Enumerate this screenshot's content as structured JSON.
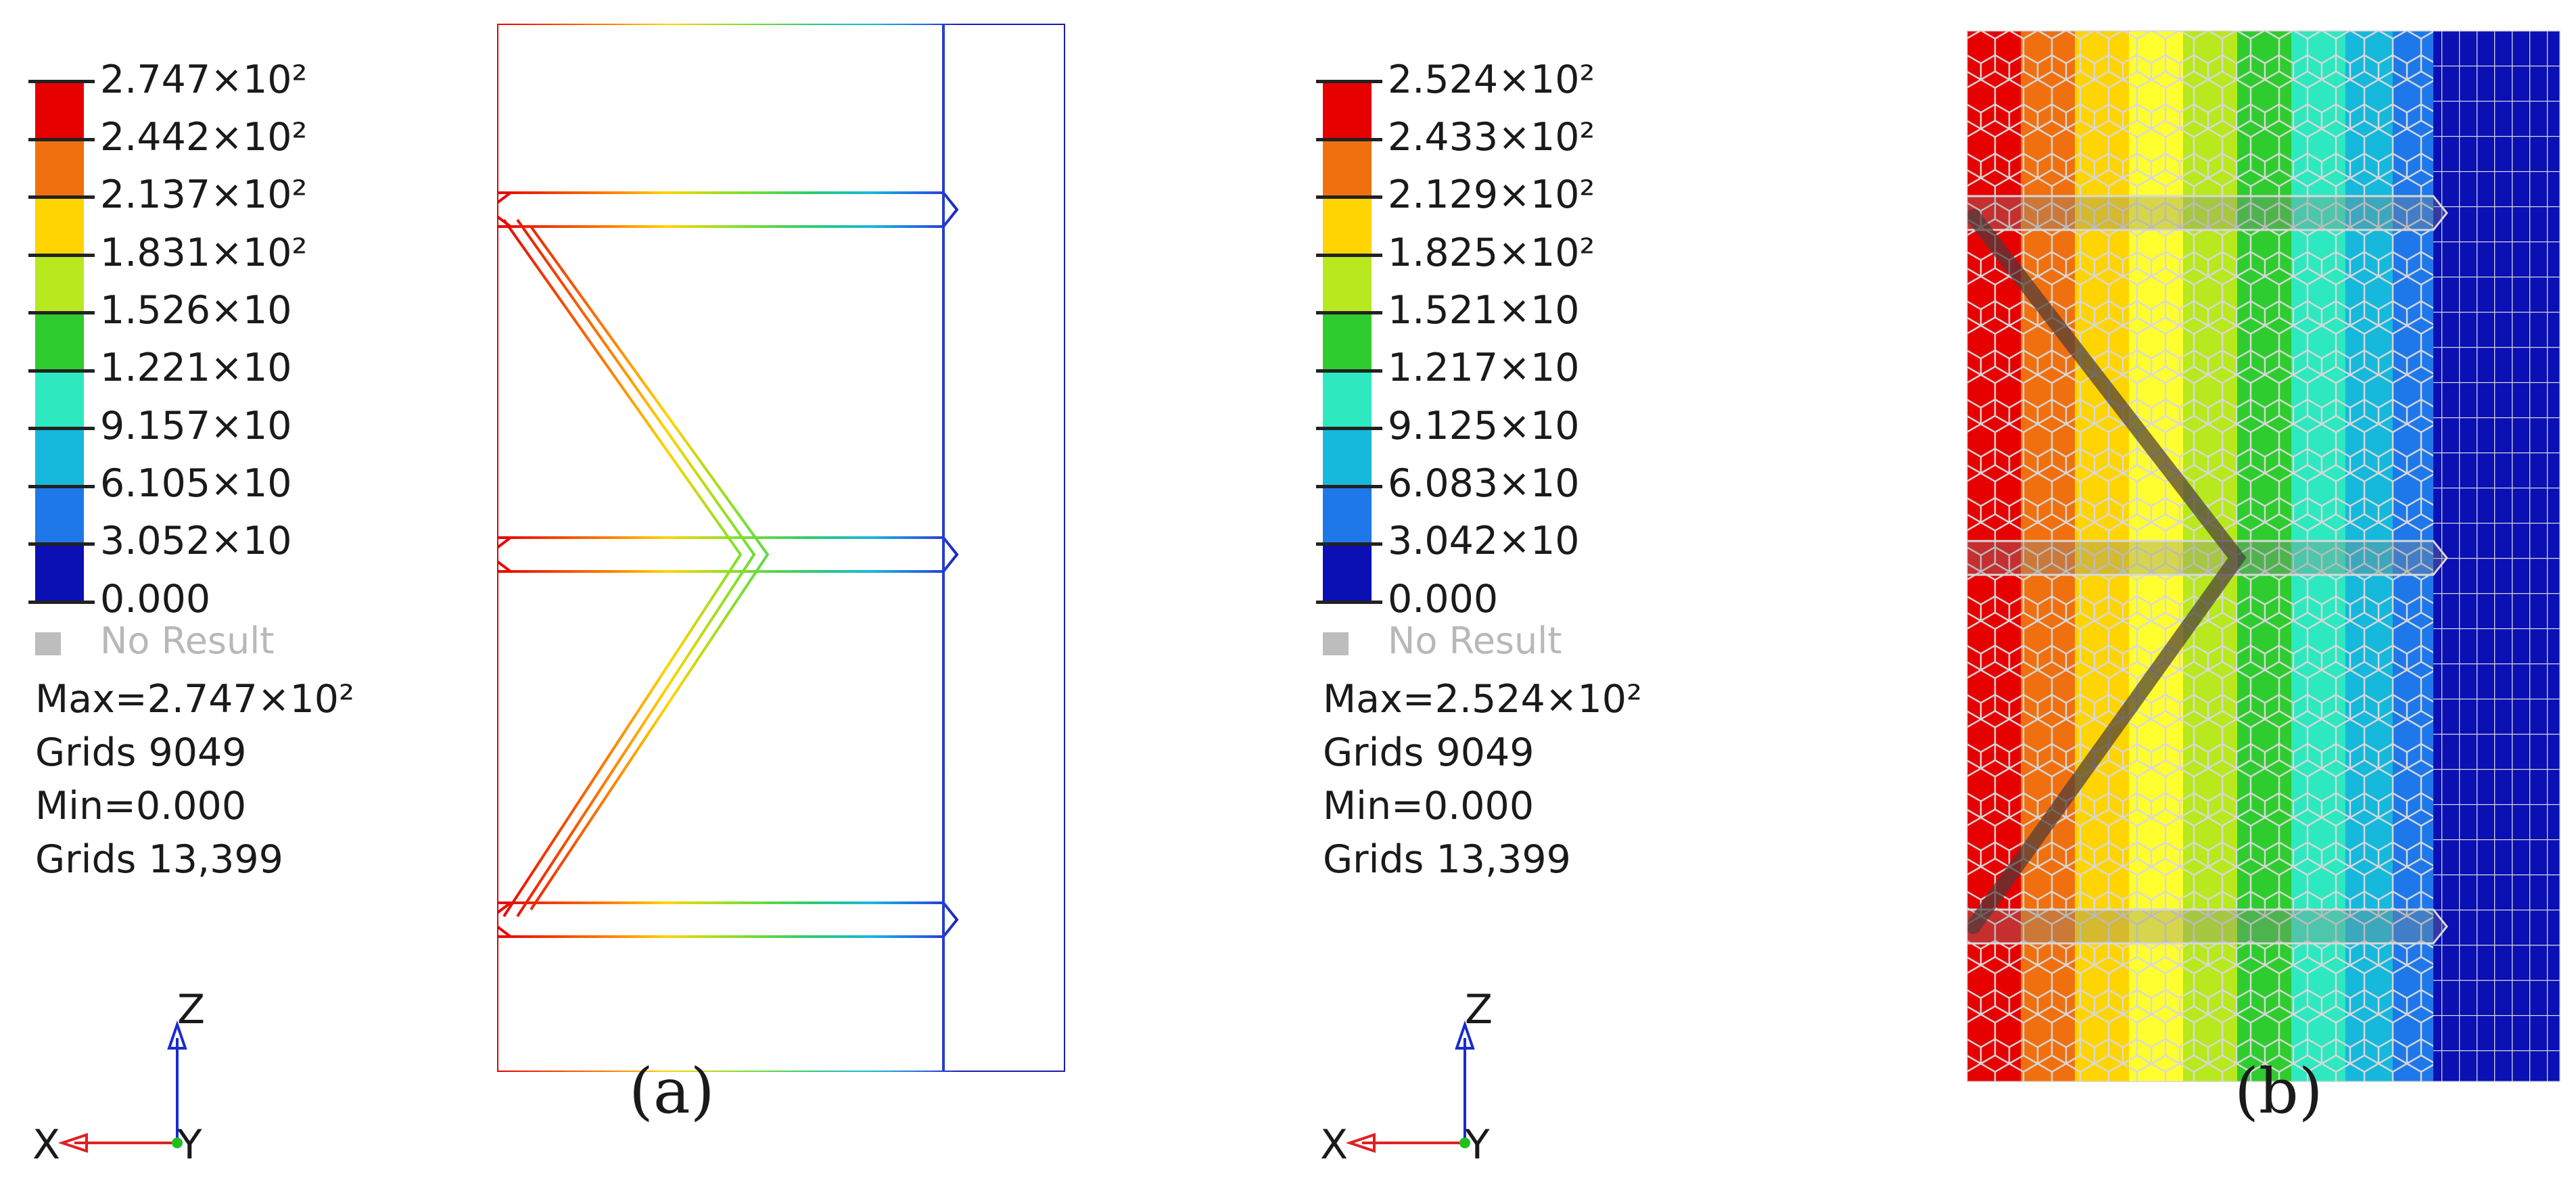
{
  "panels": [
    {
      "id": "a",
      "label": "(a)",
      "style": "wireframe",
      "legend": [
        "2.747×10²",
        "2.442×10²",
        "2.137×10²",
        "1.831×10²",
        "1.526×10",
        "1.221×10",
        "9.157×10",
        "6.105×10",
        "3.052×10",
        "0.000"
      ],
      "no_result": "No Result",
      "max": "Max=2.747×10²",
      "max_grid": "Grids 9049",
      "min": "Min=0.000",
      "min_grid": "Grids 13,399"
    },
    {
      "id": "b",
      "label": "(b)",
      "style": "filled",
      "legend": [
        "2.524×10²",
        "2.433×10²",
        "2.129×10²",
        "1.825×10²",
        "1.521×10",
        "1.217×10",
        "9.125×10",
        "6.083×10",
        "3.042×10",
        "0.000"
      ],
      "no_result": "No Result",
      "max": "Max=2.524×10²",
      "max_grid": "Grids 9049",
      "min": "Min=0.000",
      "min_grid": "Grids 13,399"
    }
  ],
  "axes_triad": {
    "z": "Z",
    "x": "X",
    "y": "Y"
  },
  "colors": {
    "scale": [
      "#e60000",
      "#f07010",
      "#ffd400",
      "#b8e81e",
      "#2ecc2e",
      "#2ee8c0",
      "#16b8dc",
      "#1e78ea",
      "#0a10b4"
    ],
    "no_result": "#bdbdbd",
    "axis_x": "#e02020",
    "axis_z": "#1a2ad0",
    "origin": "#20c020"
  }
}
